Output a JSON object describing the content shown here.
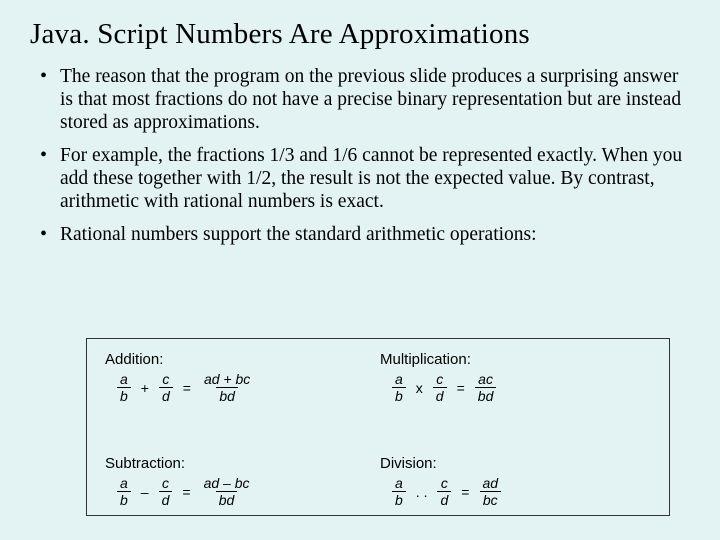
{
  "title": "Java. Script Numbers Are Approximations",
  "bullets": [
    "The reason that the program on the previous slide produces a surprising answer is that most fractions do not have a precise binary representation but are instead stored as approximations.",
    "For example, the fractions 1/3 and 1/6 cannot be represented exactly.  When you add these together with 1/2, the result is not the expected value.  By contrast, arithmetic with rational numbers is exact.",
    "Rational numbers support the standard arithmetic operations:"
  ],
  "ops": {
    "addition": {
      "label": "Addition:",
      "lhs1_num": "a",
      "lhs1_den": "b",
      "op": "+",
      "lhs2_num": "c",
      "lhs2_den": "d",
      "eq": "=",
      "rhs_num": "ad  + bc",
      "rhs_den": "bd"
    },
    "multiplication": {
      "label": "Multiplication:",
      "lhs1_num": "a",
      "lhs1_den": "b",
      "op": "x",
      "lhs2_num": "c",
      "lhs2_den": "d",
      "eq": "=",
      "rhs_num": "ac",
      "rhs_den": "bd"
    },
    "subtraction": {
      "label": "Subtraction:",
      "lhs1_num": "a",
      "lhs1_den": "b",
      "op": "–",
      "lhs2_num": "c",
      "lhs2_den": "d",
      "eq": "=",
      "rhs_num": "ad  – bc",
      "rhs_den": "bd"
    },
    "division": {
      "label": "Division:",
      "lhs1_num": "a",
      "lhs1_den": "b",
      "op": ". .",
      "lhs2_num": "c",
      "lhs2_den": "d",
      "eq": "=",
      "rhs_num": "ad",
      "rhs_den": "bc"
    }
  },
  "colors": {
    "background": "#e3f2f2",
    "text": "#000000",
    "border": "#333333"
  }
}
